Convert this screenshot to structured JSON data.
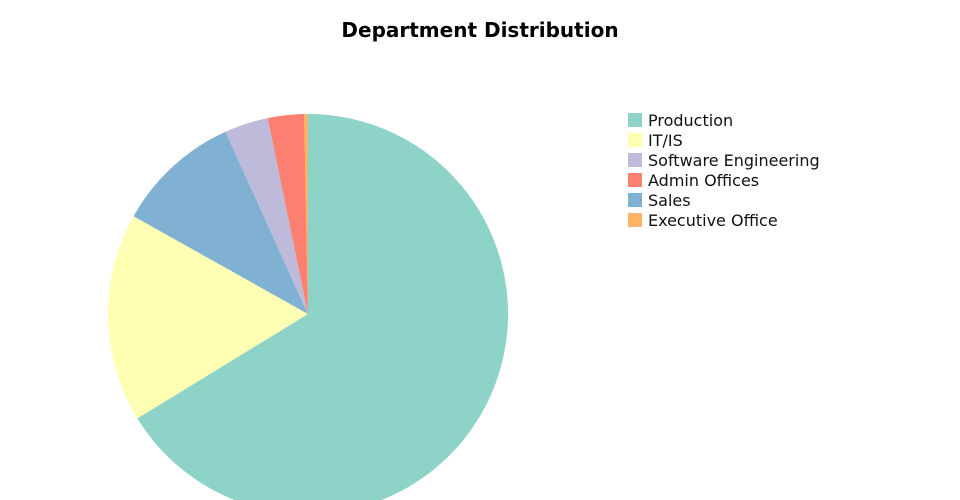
{
  "chart_data": {
    "type": "pie",
    "title": "Department Distribution",
    "legend_position": "right",
    "start_angle_deg": 90,
    "direction": "clockwise",
    "slices": [
      {
        "label": "Production",
        "value": 65.6,
        "color": "#8dd3c7"
      },
      {
        "label": "IT/IS",
        "value": 16.7,
        "color": "#ffffb3"
      },
      {
        "label": "Sales",
        "value": 10.0,
        "color": "#80b1d3"
      },
      {
        "label": "Software Engineering",
        "value": 3.5,
        "color": "#bebada"
      },
      {
        "label": "Admin Offices",
        "value": 2.9,
        "color": "#fb8072"
      },
      {
        "label": "Executive Office",
        "value": 0.3,
        "color": "#fdb462"
      }
    ],
    "legend": [
      {
        "label": "Production",
        "color": "#8dd3c7"
      },
      {
        "label": "IT/IS",
        "color": "#ffffb3"
      },
      {
        "label": "Software Engineering",
        "color": "#bebada"
      },
      {
        "label": "Admin Offices",
        "color": "#fb8072"
      },
      {
        "label": "Sales",
        "color": "#80b1d3"
      },
      {
        "label": "Executive Office",
        "color": "#fdb462"
      }
    ]
  }
}
